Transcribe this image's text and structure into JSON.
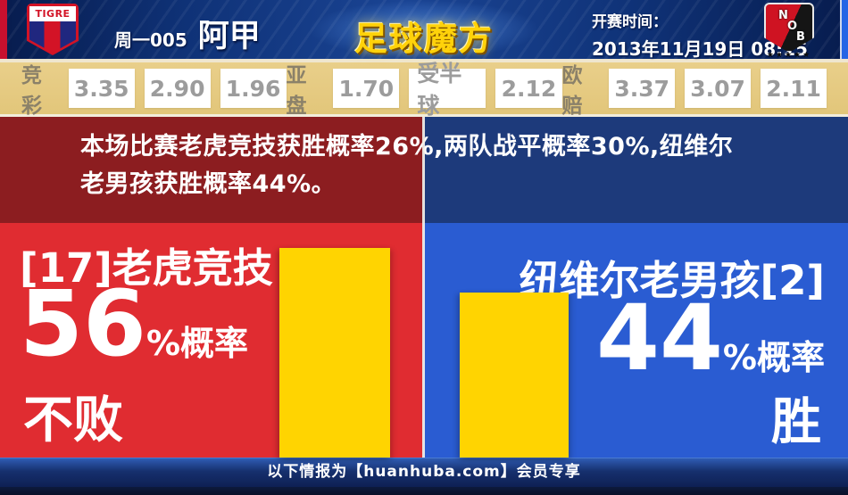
{
  "header": {
    "left_badge_text": "TIGRE",
    "match_code": "周一005",
    "league": "阿甲",
    "site_logo": "足球魔方",
    "kickoff_label": "开赛时间：",
    "kickoff_time": "2013年11月19日 08:15",
    "nob_letters": {
      "n": "N",
      "o": "O",
      "b": "B"
    },
    "nob_stars": "★★★★★"
  },
  "odds": {
    "groups": [
      {
        "label": "竞彩",
        "values": [
          "3.35",
          "2.90",
          "1.96"
        ]
      },
      {
        "label": "亚盘",
        "values": [
          "1.70",
          "受半球",
          "2.12"
        ]
      },
      {
        "label": "欧赔",
        "values": [
          "3.37",
          "3.07",
          "2.11"
        ]
      }
    ]
  },
  "summary": {
    "text": "本场比赛老虎竞技获胜概率26%,两队战平概率30%,纽维尔老男孩获胜概率44%。"
  },
  "panels": {
    "home": {
      "name": "[17]老虎竞技",
      "probability": "56",
      "pct_suffix": "%概率",
      "outcome": "不败"
    },
    "away": {
      "name": "纽维尔老男孩[2]",
      "probability": "44",
      "pct_suffix": "%概率",
      "outcome": "胜"
    }
  },
  "footer": {
    "text": "以下情报为【huanhuba.com】会员专享"
  },
  "chart_data": {
    "type": "bar",
    "categories": [
      "[17]老虎竞技 不败",
      "纽维尔老男孩[2] 胜"
    ],
    "values": [
      56,
      44
    ],
    "unit": "%",
    "title": "本场比赛老虎竞技获胜概率26%,两队战平概率30%,纽维尔老男孩获胜概率44%。",
    "annotations": {
      "home_win_pct": 26,
      "draw_pct": 30,
      "away_win_pct": 44
    },
    "bar_color": "#ffd401",
    "ylim": [
      0,
      62
    ]
  },
  "colors": {
    "bright_red": "#e02c31",
    "dark_red": "#8c1d20",
    "bright_blue": "#2a5cd2",
    "dark_blue": "#1d3a7b",
    "bar_yellow": "#ffd401",
    "odds_tan": "#e2c67a",
    "header_navy": "#1a4494",
    "footer_navy": "#16306e"
  }
}
